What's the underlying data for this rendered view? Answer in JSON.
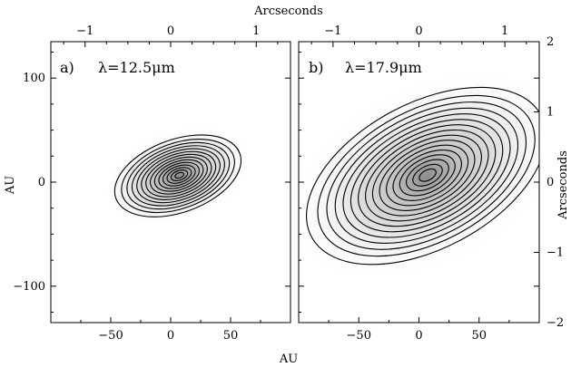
{
  "figure": {
    "top_axis_label": "Arcseconds",
    "bottom_axis_label": "AU",
    "left_axis_label": "AU",
    "right_axis_label": "Arcseconds"
  },
  "chart_data": [
    {
      "type": "contour",
      "panel_label": "a)",
      "wavelength_label": "λ=12.5μm",
      "xlim": [
        -100,
        100
      ],
      "ylim": [
        -135,
        135
      ],
      "x_ticks": [
        -50,
        0,
        50
      ],
      "y_ticks": [
        100,
        0,
        -100
      ],
      "top_xlim_arcsec": [
        -1.4,
        1.4
      ],
      "top_ticks_arcsec": [
        -1,
        0,
        1
      ],
      "peak_center_au": [
        6,
        6
      ],
      "outer_ellipse_semi_axes_au": [
        55,
        35
      ],
      "position_angle_deg": 20,
      "contour_levels": 14,
      "grayscale": true
    },
    {
      "type": "contour",
      "panel_label": "b)",
      "wavelength_label": "λ=17.9μm",
      "xlim": [
        -100,
        100
      ],
      "ylim": [
        -135,
        135
      ],
      "x_ticks": [
        -50,
        0,
        50
      ],
      "y_ticks": [
        100,
        0,
        -100
      ],
      "top_xlim_arcsec": [
        -1.4,
        1.4
      ],
      "top_ticks_arcsec": [
        -1,
        0,
        1
      ],
      "right_ylim_arcsec": [
        -2,
        2
      ],
      "right_ticks_arcsec": [
        2,
        1,
        0,
        -1,
        -2
      ],
      "peak_center_au": [
        6,
        6
      ],
      "outer_ellipse_semi_axes_au": [
        108,
        70
      ],
      "position_angle_deg": 28,
      "contour_levels": 16,
      "grayscale": true
    }
  ]
}
